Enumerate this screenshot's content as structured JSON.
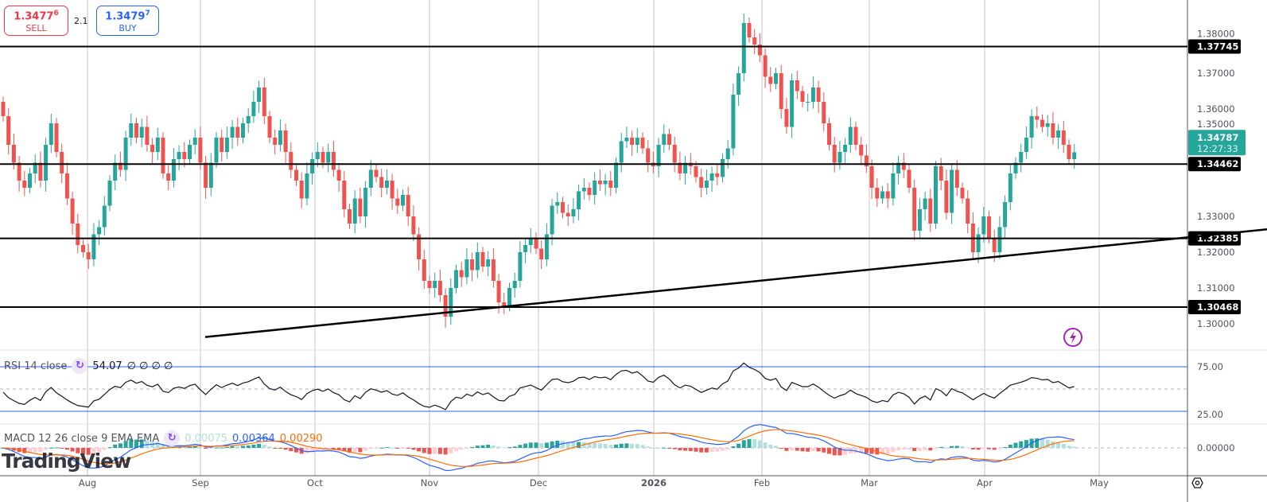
{
  "trade": {
    "sell_price": "1.3477",
    "sell_pip": "6",
    "sell_label": "SELL",
    "buy_price": "1.3479",
    "buy_pip": "7",
    "buy_label": "BUY",
    "spread": "2.1"
  },
  "indicators": {
    "rsi_label": "RSI 14 close",
    "rsi_value": "54.07",
    "rsi_extra": "∅ ∅ ∅ ∅",
    "macd_label": "MACD 12 26 close 9 EMA EMA",
    "macd_hist": "0.00075",
    "macd_line": "0.00364",
    "macd_signal": "0.00290"
  },
  "logo": "TradingView",
  "colors": {
    "bull": "#26a69a",
    "bear": "#ef5350",
    "rsi_band": "#2962ff",
    "macd_line": "#2962ff",
    "macd_signal": "#ff6d00",
    "hist_pos": "#26a69a",
    "hist_pos_fading": "#b2dfdb",
    "hist_neg": "#ef5350",
    "hist_neg_fading": "#ffcdd2"
  },
  "chart_data": {
    "type": "candlestick",
    "price_axis_ticks": [
      "1.38000",
      "1.37000",
      "1.36000",
      "1.35000",
      "1.33000",
      "1.32000",
      "1.31000",
      "1.30000"
    ],
    "ylim": [
      1.296,
      1.389
    ],
    "time_axis_labels": [
      "Aug",
      "Sep",
      "Oct",
      "Nov",
      "Dec",
      "2026",
      "Feb",
      "Mar",
      "Apr",
      "May"
    ],
    "horizontal_levels": [
      "1.37745",
      "1.34462",
      "1.32385",
      "1.30468"
    ],
    "trendline": {
      "from": {
        "date": "Sep",
        "price": 1.2963
      },
      "to_price_at_axis": 1.3264
    },
    "current_price": "1.34787",
    "countdown": "12:27:33",
    "first_open": 1.362,
    "closes": [
      1.358,
      1.35,
      1.345,
      1.34,
      1.338,
      1.342,
      1.345,
      1.34,
      1.35,
      1.356,
      1.348,
      1.342,
      1.335,
      1.328,
      1.322,
      1.32,
      1.318,
      1.325,
      1.327,
      1.333,
      1.34,
      1.345,
      1.343,
      1.352,
      1.356,
      1.352,
      1.355,
      1.35,
      1.348,
      1.352,
      1.342,
      1.34,
      1.346,
      1.348,
      1.346,
      1.35,
      1.352,
      1.345,
      1.338,
      1.345,
      1.352,
      1.348,
      1.352,
      1.355,
      1.352,
      1.356,
      1.358,
      1.362,
      1.366,
      1.358,
      1.352,
      1.35,
      1.354,
      1.348,
      1.343,
      1.34,
      1.335,
      1.342,
      1.346,
      1.348,
      1.345,
      1.348,
      1.343,
      1.34,
      1.332,
      1.328,
      1.335,
      1.33,
      1.338,
      1.343,
      1.341,
      1.338,
      1.34,
      1.335,
      1.333,
      1.336,
      1.33,
      1.325,
      1.318,
      1.312,
      1.31,
      1.312,
      1.308,
      1.302,
      1.31,
      1.315,
      1.313,
      1.318,
      1.315,
      1.32,
      1.316,
      1.318,
      1.312,
      1.306,
      1.305,
      1.31,
      1.312,
      1.32,
      1.322,
      1.324,
      1.321,
      1.318,
      1.325,
      1.333,
      1.334,
      1.331,
      1.33,
      1.332,
      1.337,
      1.338,
      1.336,
      1.34,
      1.339,
      1.34,
      1.338,
      1.345,
      1.351,
      1.352,
      1.35,
      1.352,
      1.349,
      1.345,
      1.344,
      1.35,
      1.353,
      1.35,
      1.345,
      1.342,
      1.345,
      1.344,
      1.341,
      1.338,
      1.34,
      1.342,
      1.341,
      1.346,
      1.349,
      1.364,
      1.37,
      1.384,
      1.38,
      1.378,
      1.375,
      1.369,
      1.367,
      1.37,
      1.36,
      1.355,
      1.368,
      1.365,
      1.362,
      1.362,
      1.366,
      1.362,
      1.356,
      1.35,
      1.345,
      1.348,
      1.35,
      1.355,
      1.35,
      1.347,
      1.344,
      1.338,
      1.335,
      1.337,
      1.335,
      1.342,
      1.345,
      1.343,
      1.338,
      1.326,
      1.332,
      1.335,
      1.328,
      1.344,
      1.34,
      1.331,
      1.343,
      1.338,
      1.335,
      1.328,
      1.32,
      1.325,
      1.33,
      1.324,
      1.32,
      1.327,
      1.334,
      1.342,
      1.345,
      1.348,
      1.352,
      1.358,
      1.357,
      1.355,
      1.356,
      1.352,
      1.354,
      1.35,
      1.346,
      1.3479
    ],
    "rsi": {
      "upper_band": "75.00",
      "lower_band": "25.00",
      "period": 14
    },
    "macd": {
      "zero_label": "0.00000",
      "fast": 12,
      "slow": 26,
      "signal": 9
    }
  }
}
